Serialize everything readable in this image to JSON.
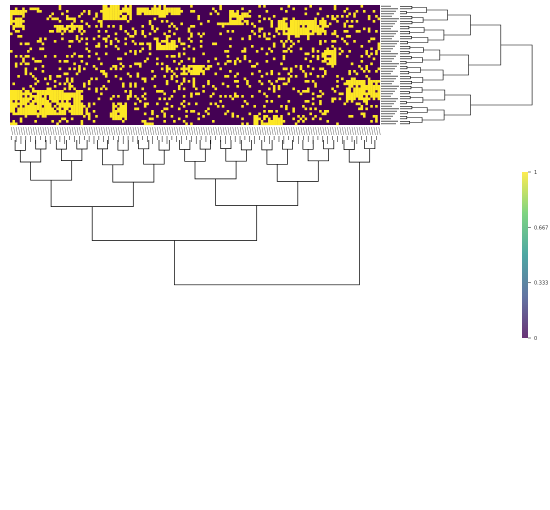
{
  "chart_data": {
    "type": "heatmap",
    "title": "",
    "xlabel": "",
    "ylabel": "",
    "n_rows": 48,
    "n_cols": 152,
    "value_range": [
      0,
      1
    ],
    "colormap": "viridis",
    "colors": {
      "low": "#440154",
      "mid": "#21918c",
      "high": "#fde725",
      "dendrogram_line": "#000000"
    },
    "row_dendrogram": "right",
    "col_dendrogram": "bottom",
    "colorbar": {
      "ticks": [
        {
          "value": 1,
          "label": "1"
        },
        {
          "value": 0.667,
          "label": "0.667"
        },
        {
          "value": 0.333,
          "label": "0.333"
        },
        {
          "value": 0,
          "label": "0"
        }
      ]
    },
    "fill_density": 0.14,
    "blocks": [
      {
        "rows": [
          0,
          6
        ],
        "cols": [
          38,
          50
        ]
      },
      {
        "rows": [
          1,
          4
        ],
        "cols": [
          52,
          70
        ]
      },
      {
        "rows": [
          2,
          9
        ],
        "cols": [
          0,
          6
        ]
      },
      {
        "rows": [
          3,
          8
        ],
        "cols": [
          90,
          98
        ]
      },
      {
        "rows": [
          6,
          12
        ],
        "cols": [
          110,
          130
        ]
      },
      {
        "rows": [
          8,
          11
        ],
        "cols": [
          20,
          30
        ]
      },
      {
        "rows": [
          14,
          18
        ],
        "cols": [
          60,
          68
        ]
      },
      {
        "rows": [
          18,
          24
        ],
        "cols": [
          128,
          134
        ]
      },
      {
        "rows": [
          24,
          28
        ],
        "cols": [
          70,
          80
        ]
      },
      {
        "rows": [
          30,
          38
        ],
        "cols": [
          138,
          152
        ]
      },
      {
        "rows": [
          34,
          44
        ],
        "cols": [
          0,
          30
        ]
      },
      {
        "rows": [
          40,
          46
        ],
        "cols": [
          42,
          48
        ]
      },
      {
        "rows": [
          44,
          48
        ],
        "cols": [
          100,
          112
        ]
      }
    ]
  }
}
